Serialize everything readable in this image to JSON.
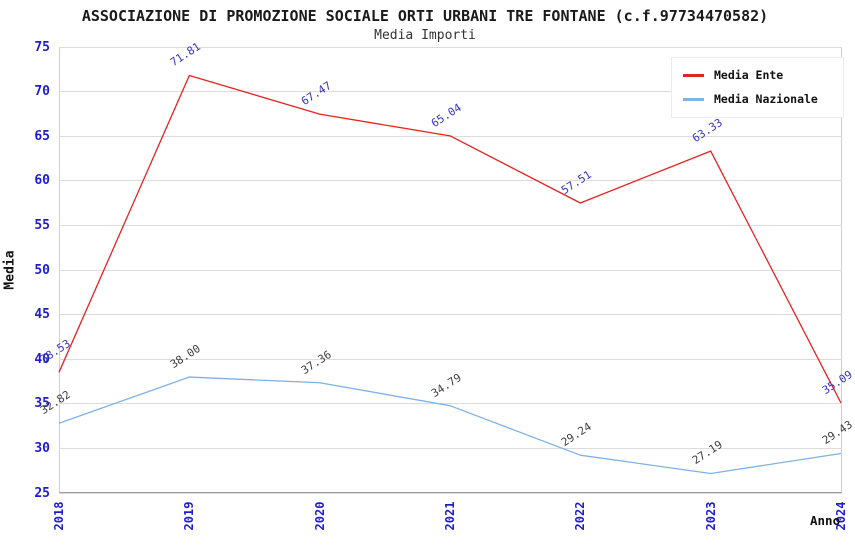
{
  "title": "ASSOCIAZIONE DI PROMOZIONE SOCIALE ORTI URBANI TRE FONTANE (c.f.97734470582)",
  "subtitle": "Media Importi",
  "chart_data": {
    "type": "line",
    "title": "ASSOCIAZIONE DI PROMOZIONE SOCIALE ORTI URBANI TRE FONTANE (c.f.97734470582)",
    "subtitle": "Media Importi",
    "xlabel": "Anno",
    "ylabel": "Media",
    "categories": [
      "2018",
      "2019",
      "2020",
      "2021",
      "2022",
      "2023",
      "2024"
    ],
    "series": [
      {
        "name": "Media Nazionale",
        "color": "#7fb2e5",
        "label_color": "#3d3d3d",
        "values": [
          32.82,
          38.0,
          37.36,
          34.79,
          29.24,
          27.19,
          29.43
        ]
      },
      {
        "name": "Media Ente",
        "color": "#e62222",
        "label_color": "#3434bd",
        "values": [
          38.53,
          71.81,
          67.47,
          65.04,
          57.51,
          63.33,
          35.09
        ]
      }
    ],
    "ylim": [
      25,
      75
    ],
    "yticks": [
      25,
      30,
      35,
      40,
      45,
      50,
      55,
      60,
      65,
      70,
      75
    ],
    "grid": "horizontal",
    "band_fill": "alternating",
    "legend_position": "top-right"
  },
  "colors": {
    "tick_blue": "#1d1dcf",
    "band_gray": "#f3f3f3",
    "gridline": "#dcdcdc",
    "title_text": "#1a1a1a",
    "axis_text": "#111111"
  }
}
